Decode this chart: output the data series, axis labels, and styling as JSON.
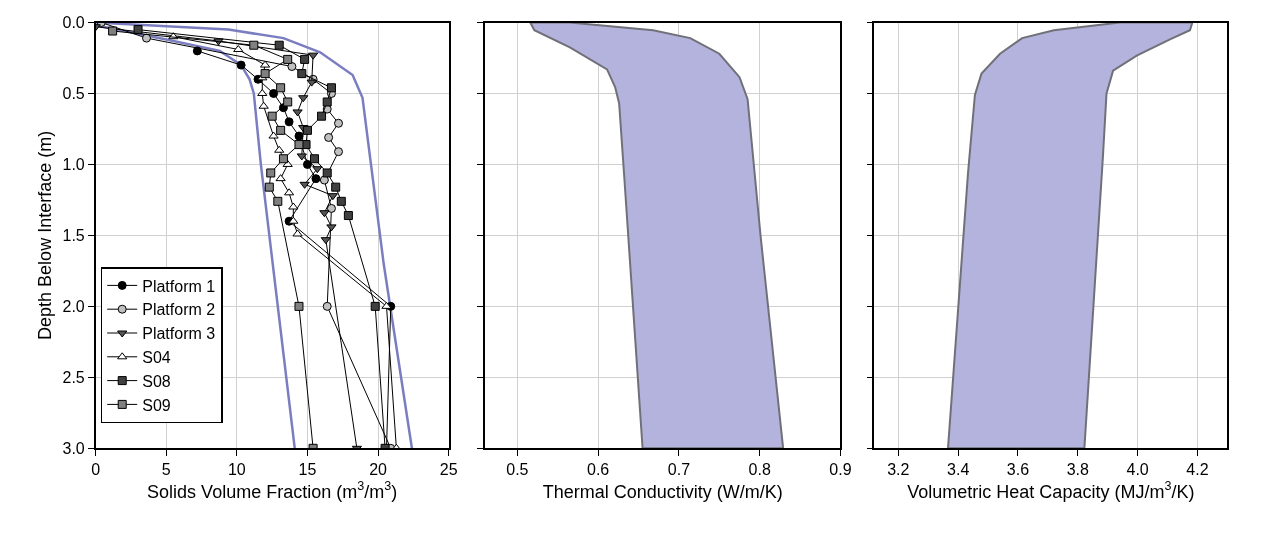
{
  "chart_data": [
    {
      "type": "line",
      "xlabel": "Solids Volume Fraction (m$^{3}$/m$^{3}$)",
      "ylabel": "Depth Below Interface (m)",
      "xlim": [
        0,
        25
      ],
      "xticks": [
        0,
        5,
        10,
        15,
        20,
        25
      ],
      "ylim": [
        3.0,
        0.0
      ],
      "yticks": [
        {
          "value": 0,
          "label": "0.0"
        },
        0.5,
        {
          "value": 1,
          "label": "1.0"
        },
        1.5,
        {
          "value": 2,
          "label": "2.0"
        },
        2.5,
        {
          "value": 3,
          "label": "3.0"
        }
      ],
      "grid": true,
      "legend": "bottom left",
      "series": [
        {
          "color": "#7a7ec0",
          "marker": "none",
          "x": [
            0,
            5,
            8.8,
            10.3,
            10.9,
            11.2,
            11.4,
            11.7,
            12.3,
            14.1
          ],
          "values": [
            0.02,
            0.12,
            0.2,
            0.3,
            0.4,
            0.5,
            0.7,
            1.0,
            1.5,
            3.0
          ]
        },
        {
          "color": "#7a7ec0",
          "marker": "none",
          "x": [
            0,
            9.4,
            13.3,
            15.9,
            18.2,
            18.9,
            19.5,
            20.4,
            22.4
          ],
          "values": [
            0.0,
            0.05,
            0.11,
            0.21,
            0.37,
            0.53,
            1.0,
            1.7,
            3.0
          ]
        },
        {
          "name": "Platform 1",
          "color": "#000000",
          "marker": "circle",
          "x": [
            7.2,
            10.3,
            11.5,
            12.6,
            13.3,
            13.7,
            14.4,
            15.0,
            15.6,
            13.7,
            20.9,
            20.6
          ],
          "values": [
            0.2,
            0.3,
            0.4,
            0.5,
            0.6,
            0.7,
            0.8,
            1.0,
            1.1,
            1.4,
            2.0,
            3.0
          ]
        },
        {
          "name": "Platform 2",
          "color": "#c0c0c0",
          "marker": "circle",
          "x": [
            0.4,
            3.6,
            13.9,
            15.4,
            16.7,
            16.4,
            17.2,
            16.5,
            17.2,
            16.2,
            16.7,
            16.4,
            20.9
          ],
          "values": [
            0.0,
            0.11,
            0.31,
            0.4,
            0.5,
            0.61,
            0.71,
            0.81,
            0.91,
            1.11,
            1.31,
            2.0,
            3.0
          ]
        },
        {
          "name": "Platform 3",
          "color": "#555555",
          "marker": "triangle-down",
          "x": [
            0,
            8.7,
            15.4,
            15.3,
            14.7,
            14.3,
            14.7,
            14.6,
            15.7,
            14.8,
            16.8,
            16.2,
            16.7,
            16.3,
            18.5
          ],
          "values": [
            0.03,
            0.13,
            0.23,
            0.42,
            0.53,
            0.63,
            0.74,
            0.94,
            1.03,
            1.14,
            1.22,
            1.34,
            1.44,
            1.53,
            3.0
          ]
        },
        {
          "name": "S04",
          "color": "#ffffff",
          "marker": "triangle",
          "x": [
            5.5,
            10.1,
            12.0,
            11.8,
            11.8,
            11.9,
            12.6,
            13.0,
            13.6,
            13.1,
            13.7,
            14.0,
            14.0,
            14.3,
            20.6,
            21.3
          ],
          "values": [
            0.1,
            0.19,
            0.3,
            0.39,
            0.5,
            0.59,
            0.8,
            0.9,
            1.0,
            1.1,
            1.2,
            1.3,
            1.4,
            1.49,
            2.0,
            3.0
          ]
        },
        {
          "name": "S08",
          "color": "#404040",
          "marker": "square",
          "x": [
            3.0,
            13.0,
            14.8,
            14.6,
            16.7,
            16.4,
            16.0,
            15.0,
            14.9,
            15.5,
            16.4,
            17.0,
            17.4,
            17.9,
            19.8,
            20.5
          ],
          "values": [
            0.05,
            0.16,
            0.26,
            0.36,
            0.46,
            0.56,
            0.66,
            0.76,
            0.86,
            0.96,
            1.06,
            1.16,
            1.26,
            1.36,
            2.0,
            3.0
          ]
        },
        {
          "name": "S09",
          "color": "#808080",
          "marker": "square",
          "x": [
            1.2,
            11.2,
            13.6,
            12.0,
            13.1,
            13.6,
            12.5,
            13.1,
            14.4,
            13.3,
            12.4,
            12.3,
            12.9,
            14.4,
            15.4
          ],
          "values": [
            0.06,
            0.16,
            0.26,
            0.36,
            0.46,
            0.56,
            0.66,
            0.76,
            0.86,
            0.96,
            1.06,
            1.16,
            1.26,
            2.0,
            3.0
          ]
        }
      ]
    },
    {
      "type": "area",
      "xlabel": "Thermal Conductivity (W/m/K)",
      "xlim": [
        0.46,
        0.9
      ],
      "xticks": [
        0.5,
        0.6,
        0.7,
        0.8,
        0.9
      ],
      "ylim": [
        3.0,
        0.0
      ],
      "yticks": [
        0,
        0.5,
        1,
        1.5,
        2,
        2.5,
        3
      ],
      "grid": true,
      "tick_labels": "x",
      "series": [
        {
          "color": "#b3b3dd",
          "x": [
            0.516,
            0.521,
            0.565,
            0.611,
            0.621,
            0.626,
            0.632,
            0.655,
            0.829,
            0.801,
            0.785,
            0.775,
            0.75,
            0.714,
            0.668,
            0.565
          ],
          "values": [
            0.0,
            0.054,
            0.175,
            0.33,
            0.455,
            0.57,
            1.06,
            3.0,
            3.0,
            1.5,
            0.54,
            0.385,
            0.22,
            0.11,
            0.054,
            0.0
          ]
        }
      ]
    },
    {
      "type": "area",
      "xlabel": "Volumetric Heat Capacity (MJ/m$^{3}$/K)",
      "xlim": [
        3.12,
        4.3
      ],
      "xticks": [
        3.2,
        3.4,
        3.6,
        3.8,
        {
          "value": 4,
          "label": "4.0"
        },
        4.2
      ],
      "ylim": [
        3.0,
        0.0
      ],
      "yticks": [
        0,
        0.5,
        1,
        1.5,
        2,
        2.5,
        3
      ],
      "grid": true,
      "tick_labels": "x",
      "series": [
        {
          "color": "#b3b3dd",
          "x": [
            3.94,
            3.72,
            3.614,
            3.54,
            3.478,
            3.456,
            3.433,
            3.366,
            3.822,
            3.884,
            3.896,
            3.918,
            3.997,
            4.11,
            4.175,
            4.183
          ],
          "values": [
            0.0,
            0.054,
            0.11,
            0.22,
            0.36,
            0.51,
            1.06,
            3.0,
            3.0,
            0.946,
            0.5,
            0.339,
            0.233,
            0.117,
            0.054,
            0.0
          ]
        }
      ]
    }
  ]
}
